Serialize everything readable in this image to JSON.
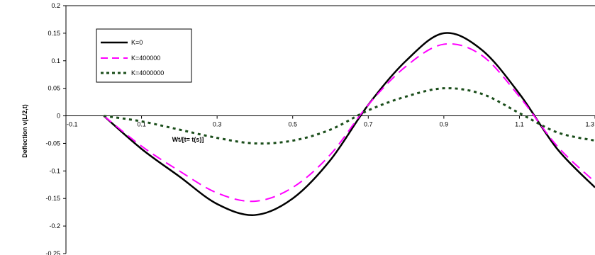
{
  "chart_data": {
    "type": "line",
    "xlabel": "Wt/[t= t(s)]",
    "ylabel": "Deflection v(L/2,t)",
    "xlim": [
      -0.1,
      1.3
    ],
    "ylim": [
      -0.25,
      0.2
    ],
    "x_ticks": [
      -0.1,
      0.1,
      0.3,
      0.5,
      0.7,
      0.9,
      1.1,
      1.3
    ],
    "x_tick_labels": [
      "-0.1",
      "0.1",
      "0.3",
      "0.5",
      "0.7",
      "0.9",
      "1.1",
      "1.3"
    ],
    "y_ticks": [
      0.2,
      0.15,
      0.1,
      0.05,
      0,
      -0.05,
      -0.1,
      -0.15,
      -0.2,
      -0.25
    ],
    "y_tick_labels": [
      "0.2",
      "0.15",
      "0.1",
      "0.05",
      "0",
      "-0.05",
      "-0.1",
      "-0.15",
      "-0.2",
      "-0.25"
    ],
    "grid": false,
    "legend_position": "top-left",
    "series": [
      {
        "name": "K=0",
        "color": "#000000",
        "style": "solid",
        "x": [
          0,
          0.1,
          0.2,
          0.3,
          0.4,
          0.5,
          0.6,
          0.7,
          0.8,
          0.9,
          1.0,
          1.1,
          1.2,
          1.3
        ],
        "y": [
          0,
          -0.06,
          -0.11,
          -0.16,
          -0.18,
          -0.15,
          -0.08,
          0.02,
          0.1,
          0.15,
          0.12,
          0.04,
          -0.06,
          -0.13
        ]
      },
      {
        "name": "K=400000",
        "color": "#ff00ff",
        "style": "dashed",
        "x": [
          0,
          0.1,
          0.2,
          0.3,
          0.4,
          0.5,
          0.6,
          0.7,
          0.8,
          0.9,
          1.0,
          1.1,
          1.2,
          1.3
        ],
        "y": [
          0,
          -0.055,
          -0.1,
          -0.14,
          -0.155,
          -0.13,
          -0.07,
          0.02,
          0.09,
          0.13,
          0.11,
          0.035,
          -0.055,
          -0.12
        ]
      },
      {
        "name": "K=4000000",
        "color": "#1a4d1a",
        "style": "dotted",
        "x": [
          0,
          0.1,
          0.2,
          0.3,
          0.4,
          0.5,
          0.6,
          0.7,
          0.8,
          0.9,
          1.0,
          1.1,
          1.2,
          1.3
        ],
        "y": [
          0,
          -0.01,
          -0.025,
          -0.04,
          -0.05,
          -0.045,
          -0.025,
          0.01,
          0.035,
          0.05,
          0.04,
          0.005,
          -0.03,
          -0.045
        ]
      }
    ]
  }
}
